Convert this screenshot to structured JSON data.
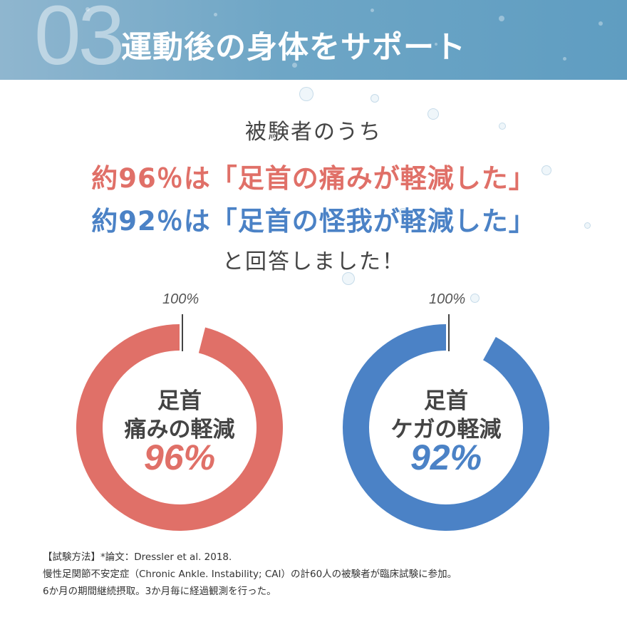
{
  "header": {
    "section_number": "03",
    "title": "運動後の身体をサポート"
  },
  "lead_top": "被験者のうち",
  "headline_red": "約96％は「足首の痛みが軽減した」",
  "headline_blue": "約92％は「足首の怪我が軽減した」",
  "lead_bottom": "と回答しました！",
  "colors": {
    "red": "#e07068",
    "blue": "#4b82c6",
    "header": "#6ea6c6"
  },
  "chart_data": [
    {
      "type": "pie",
      "variant": "donut",
      "max_label": "100%",
      "label_line1": "足首",
      "label_line2": "痛みの軽減",
      "value_label": "96%",
      "value": 96,
      "max": 100,
      "color": "#e07068"
    },
    {
      "type": "pie",
      "variant": "donut",
      "max_label": "100%",
      "label_line1": "足首",
      "label_line2": "ケガの軽減",
      "value_label": "92%",
      "value": 92,
      "max": 100,
      "color": "#4b82c6"
    }
  ],
  "footnote": {
    "line1": "【試験方法】*論文：Dressler et al. 2018.",
    "line2": "慢性足関節不安定症（Chronic Ankle. Instability; CAI）の計60人の被験者が臨床試験に参加。",
    "line3": "6か月の期間継続摂取。3か月毎に経過観測を行った。"
  }
}
